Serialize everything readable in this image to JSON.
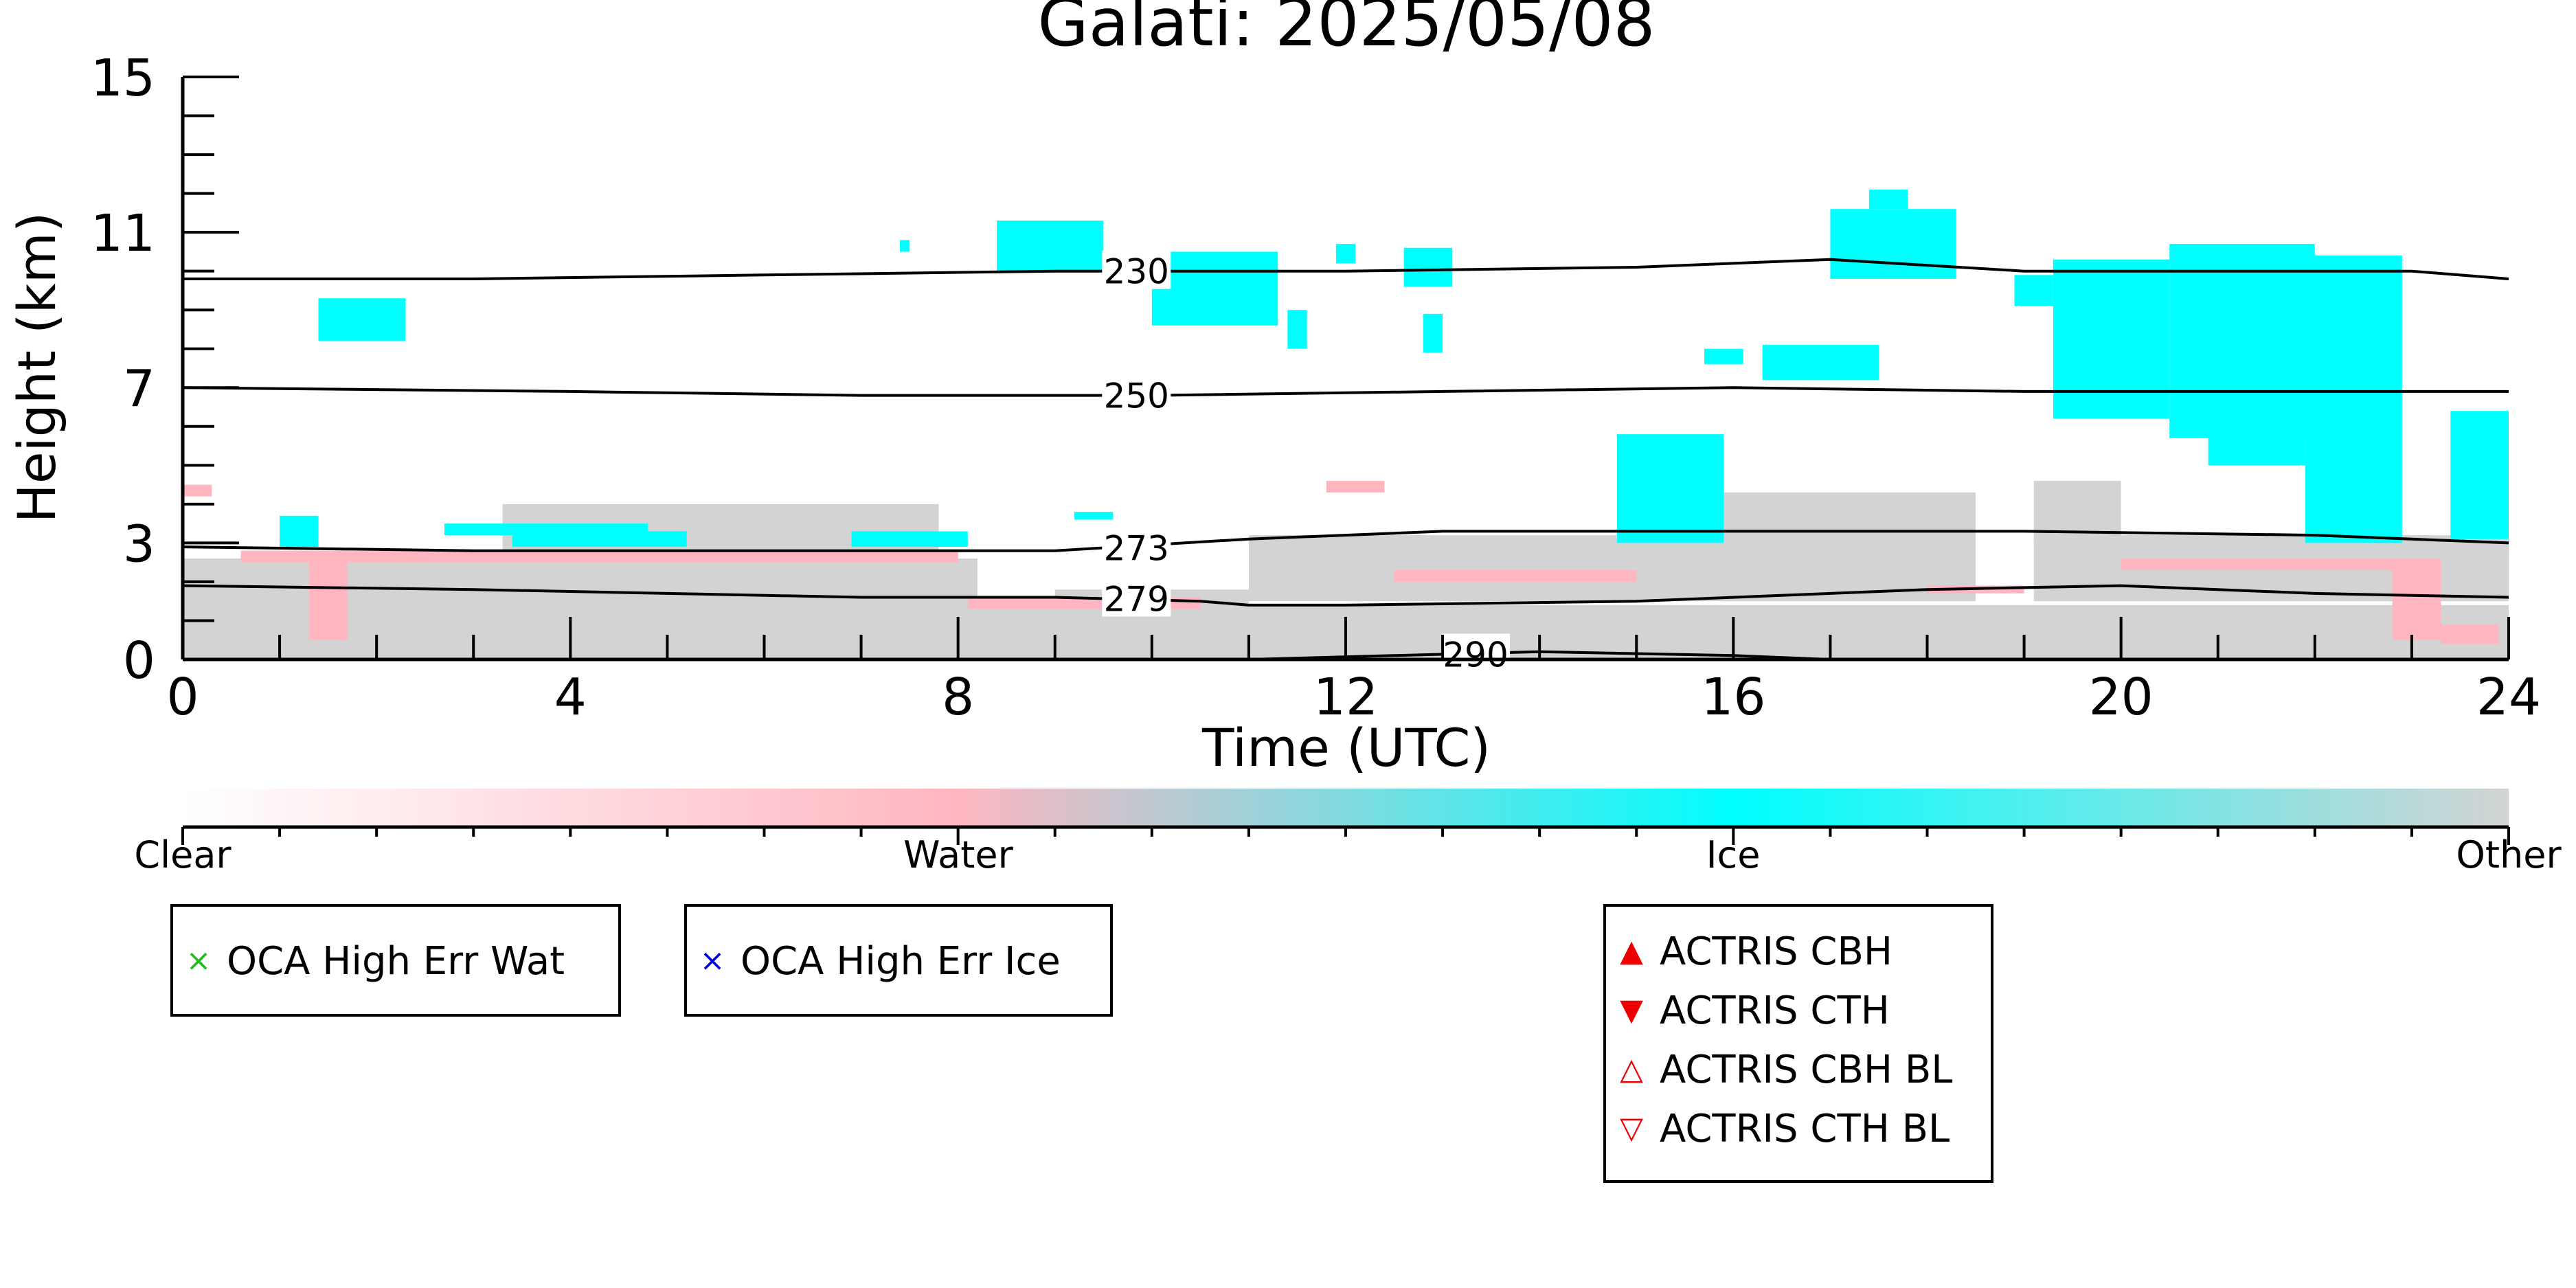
{
  "chart_data": {
    "type": "heatmap",
    "title": "Galati: 2025/05/08",
    "xlabel": "Time (UTC)",
    "ylabel": "Height (km)",
    "xlim": [
      0,
      24
    ],
    "ylim": [
      0,
      15
    ],
    "x_ticks": [
      "0",
      "4",
      "8",
      "12",
      "16",
      "20",
      "24"
    ],
    "y_ticks": [
      "0",
      "3",
      "7",
      "11",
      "15"
    ],
    "x_tick_values": [
      0,
      4,
      8,
      12,
      16,
      20,
      24
    ],
    "y_tick_values": [
      0,
      3,
      7,
      11,
      15
    ],
    "categories": [
      "Clear",
      "Water",
      "Ice",
      "Other"
    ],
    "category_colors": {
      "Clear": "#ffffff",
      "Water": "#ffb6c1",
      "Ice": "#00ffff",
      "Other": "#d3d3d3"
    },
    "temperature_contours": [
      {
        "label": "230",
        "label_x": 9.5,
        "points": [
          [
            0,
            9.8
          ],
          [
            3,
            9.8
          ],
          [
            6,
            9.9
          ],
          [
            9,
            10.0
          ],
          [
            12,
            10.0
          ],
          [
            15,
            10.1
          ],
          [
            17,
            10.3
          ],
          [
            19,
            10.0
          ],
          [
            21,
            10.0
          ],
          [
            23,
            10.0
          ],
          [
            24,
            9.8
          ]
        ]
      },
      {
        "label": "250",
        "label_x": 9.5,
        "points": [
          [
            0,
            7.0
          ],
          [
            4,
            6.9
          ],
          [
            7,
            6.8
          ],
          [
            10,
            6.8
          ],
          [
            13,
            6.9
          ],
          [
            16,
            7.0
          ],
          [
            19,
            6.9
          ],
          [
            22,
            6.9
          ],
          [
            24,
            6.9
          ]
        ]
      },
      {
        "label": "273",
        "label_x": 9.5,
        "points": [
          [
            0,
            2.9
          ],
          [
            3,
            2.8
          ],
          [
            6,
            2.8
          ],
          [
            9,
            2.8
          ],
          [
            11,
            3.1
          ],
          [
            13,
            3.3
          ],
          [
            16,
            3.3
          ],
          [
            19,
            3.3
          ],
          [
            22,
            3.2
          ],
          [
            24,
            3.0
          ]
        ]
      },
      {
        "label": "279",
        "label_x": 9.5,
        "points": [
          [
            0,
            1.9
          ],
          [
            3,
            1.8
          ],
          [
            5,
            1.7
          ],
          [
            7,
            1.6
          ],
          [
            9,
            1.6
          ],
          [
            10.5,
            1.5
          ],
          [
            11,
            1.4
          ],
          [
            12,
            1.4
          ],
          [
            15,
            1.5
          ],
          [
            18,
            1.8
          ],
          [
            20,
            1.9
          ],
          [
            22,
            1.7
          ],
          [
            24,
            1.6
          ]
        ]
      },
      {
        "label": "290",
        "label_x": 13.0,
        "points": [
          [
            11,
            0.0
          ],
          [
            12.5,
            0.1
          ],
          [
            14,
            0.2
          ],
          [
            16,
            0.1
          ],
          [
            17,
            0.0
          ]
        ]
      }
    ],
    "regions": [
      {
        "cls": "Other",
        "x0": 0.0,
        "x1": 24.0,
        "y0": 0.0,
        "y1": 1.4
      },
      {
        "cls": "Other",
        "x0": 0.0,
        "x1": 8.2,
        "y0": 1.3,
        "y1": 2.6
      },
      {
        "cls": "Other",
        "x0": 3.3,
        "x1": 7.8,
        "y0": 2.5,
        "y1": 4.0
      },
      {
        "cls": "Other",
        "x0": 9.0,
        "x1": 11.0,
        "y0": 1.3,
        "y1": 1.8
      },
      {
        "cls": "Other",
        "x0": 11.0,
        "x1": 18.5,
        "y0": 1.5,
        "y1": 3.2
      },
      {
        "cls": "Other",
        "x0": 15.0,
        "x1": 18.5,
        "y0": 3.0,
        "y1": 4.3
      },
      {
        "cls": "Other",
        "x0": 19.1,
        "x1": 24.0,
        "y0": 1.5,
        "y1": 3.2
      },
      {
        "cls": "Other",
        "x0": 19.1,
        "x1": 20.0,
        "y0": 3.0,
        "y1": 4.6
      },
      {
        "cls": "Water",
        "x0": 1.3,
        "x1": 1.7,
        "y0": 0.5,
        "y1": 2.6
      },
      {
        "cls": "Water",
        "x0": 0.6,
        "x1": 8.0,
        "y0": 2.5,
        "y1": 2.8
      },
      {
        "cls": "Water",
        "x0": 0.0,
        "x1": 0.3,
        "y0": 4.2,
        "y1": 4.5
      },
      {
        "cls": "Water",
        "x0": 8.1,
        "x1": 10.5,
        "y0": 1.3,
        "y1": 1.6
      },
      {
        "cls": "Water",
        "x0": 12.5,
        "x1": 15.0,
        "y0": 2.0,
        "y1": 2.3
      },
      {
        "cls": "Water",
        "x0": 18.0,
        "x1": 19.0,
        "y0": 1.7,
        "y1": 1.9
      },
      {
        "cls": "Water",
        "x0": 20.0,
        "x1": 23.0,
        "y0": 2.3,
        "y1": 2.6
      },
      {
        "cls": "Water",
        "x0": 22.8,
        "x1": 23.3,
        "y0": 0.5,
        "y1": 2.6
      },
      {
        "cls": "Water",
        "x0": 23.3,
        "x1": 23.9,
        "y0": 0.4,
        "y1": 0.9
      },
      {
        "cls": "Water",
        "x0": 11.8,
        "x1": 12.4,
        "y0": 4.3,
        "y1": 4.6
      },
      {
        "cls": "Ice",
        "x0": 1.0,
        "x1": 1.4,
        "y0": 2.9,
        "y1": 3.7
      },
      {
        "cls": "Ice",
        "x0": 2.7,
        "x1": 4.8,
        "y0": 3.2,
        "y1": 3.5
      },
      {
        "cls": "Ice",
        "x0": 3.4,
        "x1": 5.2,
        "y0": 2.9,
        "y1": 3.3
      },
      {
        "cls": "Ice",
        "x0": 6.9,
        "x1": 8.1,
        "y0": 2.9,
        "y1": 3.3
      },
      {
        "cls": "Ice",
        "x0": 9.2,
        "x1": 9.6,
        "y0": 3.6,
        "y1": 3.8
      },
      {
        "cls": "Ice",
        "x0": 1.4,
        "x1": 2.3,
        "y0": 8.2,
        "y1": 9.3
      },
      {
        "cls": "Ice",
        "x0": 7.4,
        "x1": 7.5,
        "y0": 10.5,
        "y1": 10.8
      },
      {
        "cls": "Ice",
        "x0": 8.4,
        "x1": 9.5,
        "y0": 10.0,
        "y1": 11.3
      },
      {
        "cls": "Ice",
        "x0": 10.0,
        "x1": 11.3,
        "y0": 8.6,
        "y1": 10.5
      },
      {
        "cls": "Ice",
        "x0": 11.4,
        "x1": 11.6,
        "y0": 8.0,
        "y1": 9.0
      },
      {
        "cls": "Ice",
        "x0": 11.9,
        "x1": 12.1,
        "y0": 10.2,
        "y1": 10.7
      },
      {
        "cls": "Ice",
        "x0": 12.6,
        "x1": 13.1,
        "y0": 9.6,
        "y1": 10.6
      },
      {
        "cls": "Ice",
        "x0": 12.8,
        "x1": 13.0,
        "y0": 7.9,
        "y1": 8.9
      },
      {
        "cls": "Ice",
        "x0": 15.7,
        "x1": 16.1,
        "y0": 7.6,
        "y1": 8.0
      },
      {
        "cls": "Ice",
        "x0": 16.3,
        "x1": 17.5,
        "y0": 7.2,
        "y1": 8.1
      },
      {
        "cls": "Ice",
        "x0": 14.8,
        "x1": 15.9,
        "y0": 3.0,
        "y1": 5.8
      },
      {
        "cls": "Ice",
        "x0": 17.0,
        "x1": 18.3,
        "y0": 9.8,
        "y1": 11.6
      },
      {
        "cls": "Ice",
        "x0": 17.4,
        "x1": 17.8,
        "y0": 11.6,
        "y1": 12.1
      },
      {
        "cls": "Ice",
        "x0": 18.9,
        "x1": 19.3,
        "y0": 9.1,
        "y1": 9.9
      },
      {
        "cls": "Ice",
        "x0": 19.3,
        "x1": 20.5,
        "y0": 6.2,
        "y1": 10.3
      },
      {
        "cls": "Ice",
        "x0": 20.5,
        "x1": 22.0,
        "y0": 5.7,
        "y1": 10.7
      },
      {
        "cls": "Ice",
        "x0": 21.9,
        "x1": 22.9,
        "y0": 3.0,
        "y1": 10.4
      },
      {
        "cls": "Ice",
        "x0": 20.9,
        "x1": 21.9,
        "y0": 5.0,
        "y1": 6.3
      },
      {
        "cls": "Ice",
        "x0": 23.4,
        "x1": 24.0,
        "y0": 3.1,
        "y1": 6.4
      }
    ]
  },
  "colorbar": {
    "labels": [
      {
        "text": "Clear",
        "pos": 0.0
      },
      {
        "text": "Water",
        "pos": 0.333
      },
      {
        "text": "Ice",
        "pos": 0.667
      },
      {
        "text": "Other",
        "pos": 1.0
      }
    ]
  },
  "legend_oca_water": {
    "symbol": "×",
    "color": "#22bb22",
    "label": "OCA High Err Wat"
  },
  "legend_oca_ice": {
    "symbol": "×",
    "color": "#0000dd",
    "label": "OCA High Err Ice"
  },
  "legend_actris": [
    {
      "symbol": "▲",
      "color": "#ee0000",
      "label": "ACTRIS CBH"
    },
    {
      "symbol": "▼",
      "color": "#ee0000",
      "label": "ACTRIS CTH"
    },
    {
      "symbol": "△",
      "color": "#ee0000",
      "label": "ACTRIS CBH BL"
    },
    {
      "symbol": "▽",
      "color": "#ee0000",
      "label": "ACTRIS CTH BL"
    }
  ]
}
